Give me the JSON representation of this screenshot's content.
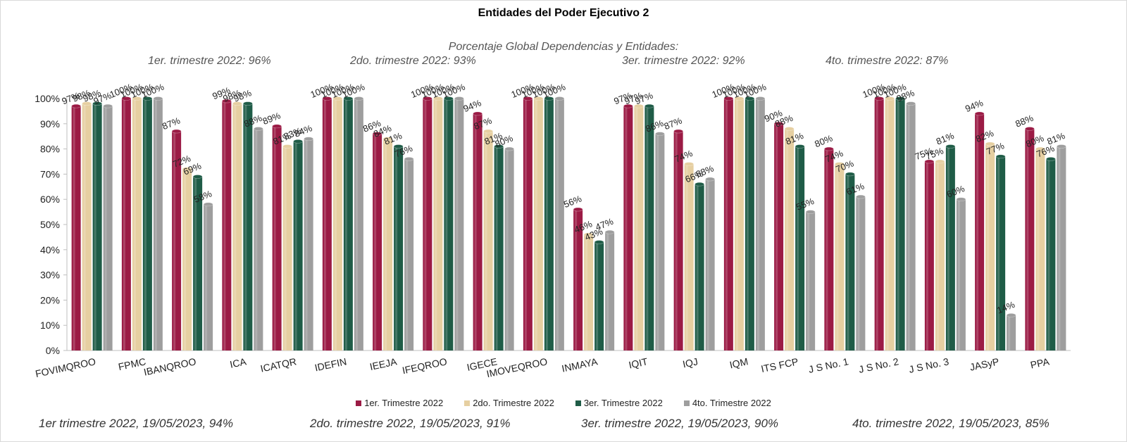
{
  "title": "Entidades del Poder Ejecutivo 2",
  "subtitle": "Porcentaje Global  Dependencias y Entidades:",
  "quarter_summaries": [
    "1er. trimestre 2022: 96%",
    "2do. trimestre 2022: 93%",
    "3er. trimestre 2022: 92%",
    "4to. trimestre 2022: 87%"
  ],
  "footer_summaries": [
    "1er trimestre  2022,  19/05/2023, 94%",
    "2do. trimestre 2022, 19/05/2023, 91%",
    "3er. trimestre 2022, 19/05/2023, 90%",
    "4to. trimestre 2022, 19/05/2023, 85%"
  ],
  "chart_data": {
    "type": "bar",
    "title": "Entidades del Poder Ejecutivo 2",
    "xlabel": "",
    "ylabel": "",
    "ylim": [
      0,
      100
    ],
    "yticks": [
      "0%",
      "10%",
      "20%",
      "30%",
      "40%",
      "50%",
      "60%",
      "70%",
      "80%",
      "90%",
      "100%"
    ],
    "grid": false,
    "legend_position": "bottom",
    "categories": [
      "FOVIMQROO",
      "FPMC",
      "IBANQROO",
      "ICA",
      "ICATQR",
      "IDEFIN",
      "IEEJA",
      "IFEQROO",
      "IGECE",
      "IMOVEQROO",
      "INMAYA",
      "IQIT",
      "IQJ",
      "IQM",
      "ITS FCP",
      "J S No. 1",
      "J S No. 2",
      "J S No. 3",
      "JASyP",
      "PPA"
    ],
    "series": [
      {
        "name": "1er. Trimestre 2022",
        "color": "#9b1b45",
        "values": [
          97,
          100,
          87,
          99,
          89,
          100,
          86,
          100,
          94,
          100,
          56,
          97,
          87,
          100,
          90,
          80,
          100,
          75,
          94,
          88
        ]
      },
      {
        "name": "2do. Trimestre 2022",
        "color": "#e6cfa1",
        "values": [
          98,
          100,
          72,
          98,
          81,
          100,
          84,
          100,
          87,
          100,
          46,
          97,
          74,
          100,
          88,
          74,
          100,
          75,
          82,
          80
        ]
      },
      {
        "name": "3er. Trimestre 2022",
        "color": "#1f5c47",
        "values": [
          98,
          100,
          69,
          98,
          83,
          100,
          81,
          100,
          81,
          100,
          43,
          97,
          66,
          100,
          81,
          70,
          100,
          81,
          77,
          76
        ]
      },
      {
        "name": "4to. Trimestre 2022",
        "color": "#9e9e9e",
        "values": [
          97,
          100,
          58,
          88,
          84,
          100,
          76,
          100,
          80,
          100,
          47,
          86,
          68,
          100,
          55,
          61,
          98,
          60,
          14,
          81
        ]
      }
    ]
  }
}
